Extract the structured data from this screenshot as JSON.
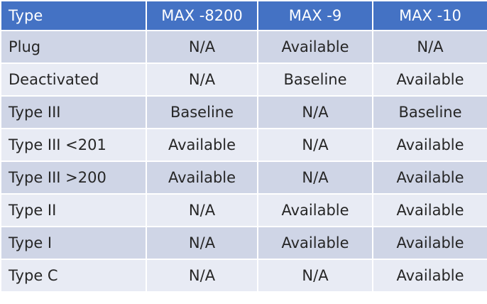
{
  "table": {
    "headers": [
      "Type",
      "MAX -8200",
      "MAX -9",
      "MAX -10"
    ],
    "rows": [
      [
        "Plug",
        "N/A",
        "Available",
        "N/A"
      ],
      [
        "Deactivated",
        "N/A",
        "Baseline",
        "Available"
      ],
      [
        "Type III",
        "Baseline",
        "N/A",
        "Baseline"
      ],
      [
        "Type III <201",
        "Available",
        "N/A",
        "Available"
      ],
      [
        "Type III >200",
        "Available",
        "N/A",
        "Available"
      ],
      [
        "Type II",
        "N/A",
        "Available",
        "Available"
      ],
      [
        "Type I",
        "N/A",
        "Available",
        "Available"
      ],
      [
        "Type C",
        "N/A",
        "N/A",
        "Available"
      ]
    ],
    "colors": {
      "header": "#4472c4",
      "row_odd": "#cfd5e6",
      "row_even": "#e8ebf4"
    }
  }
}
